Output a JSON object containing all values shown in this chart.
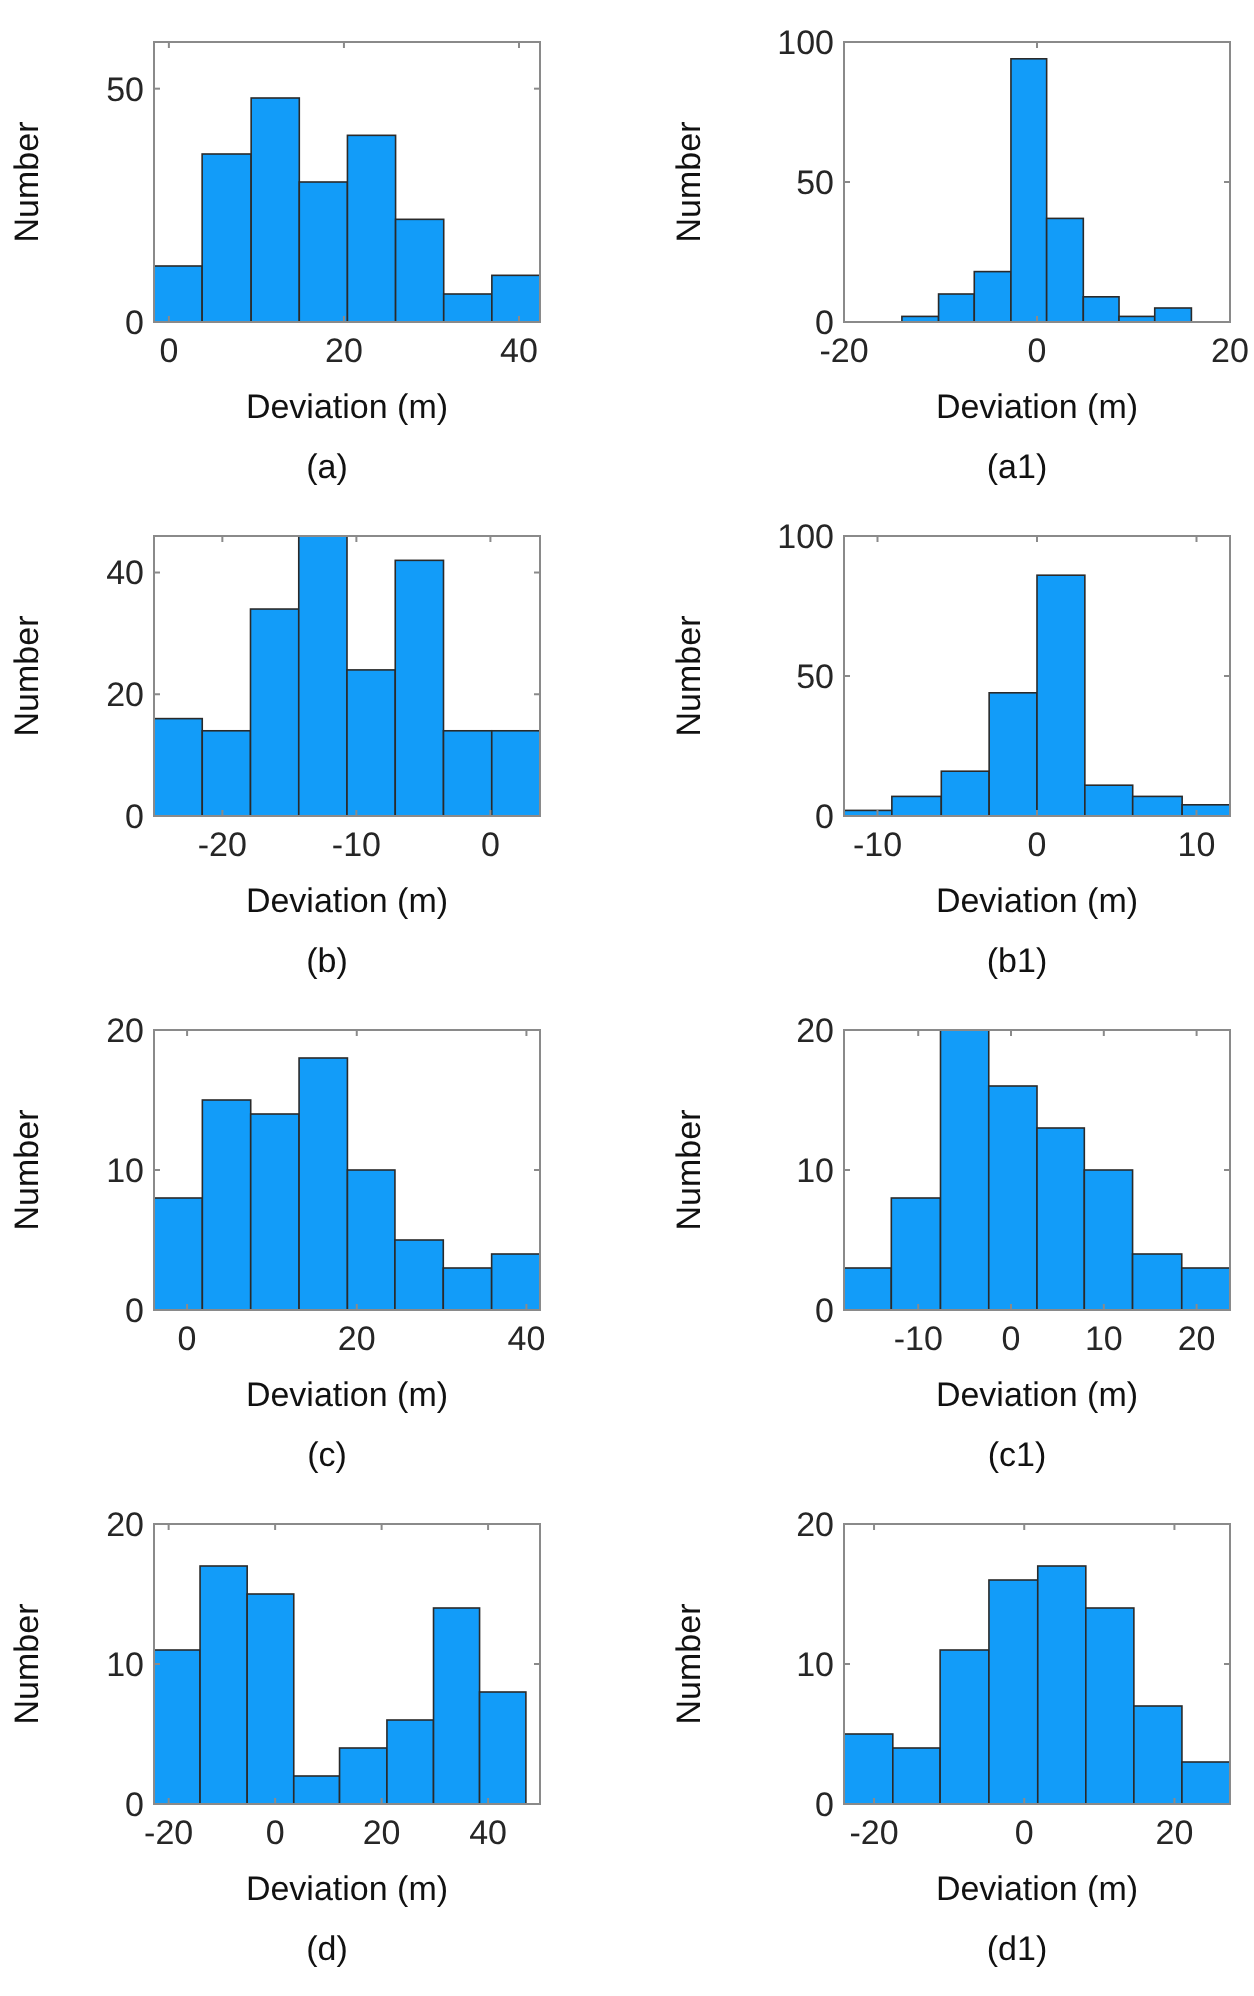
{
  "chart_data": [
    {
      "type": "histogram",
      "xlabel": "Deviation (m)",
      "ylabel": "Number",
      "annotations": [
        "(a)"
      ],
      "color": "#129cf9",
      "bins": [
        -1.7,
        3.8,
        9.4,
        14.9,
        20.4,
        25.9,
        31.4,
        36.9,
        42.4
      ],
      "values": [
        12,
        36,
        48,
        30,
        40,
        22,
        6,
        10
      ],
      "xlim": [
        -1.7,
        42.4
      ],
      "xticks": [
        0,
        20,
        40
      ],
      "ylim": [
        0,
        60
      ],
      "yticks": [
        0,
        50
      ],
      "grid": false
    },
    {
      "type": "histogram",
      "xlabel": "Deviation (m)",
      "ylabel": "Number",
      "annotations": [
        "(a1)"
      ],
      "color": "#129cf9",
      "bins": [
        -14,
        -10.2,
        -6.5,
        -2.7,
        1,
        4.8,
        8.5,
        12.2,
        16
      ],
      "values": [
        2,
        10,
        18,
        94,
        37,
        9,
        2,
        5
      ],
      "xlim": [
        -20,
        20
      ],
      "xticks": [
        -20,
        0,
        20
      ],
      "ylim": [
        0,
        100
      ],
      "yticks": [
        0,
        50,
        100
      ],
      "grid": false
    },
    {
      "type": "histogram",
      "xlabel": "Deviation (m)",
      "ylabel": "Number",
      "annotations": [
        "(b)"
      ],
      "color": "#129cf9",
      "bins": [
        -25.1,
        -21.5,
        -17.9,
        -14.3,
        -10.7,
        -7.1,
        -3.5,
        0.1,
        3.7
      ],
      "values": [
        16,
        14,
        34,
        46,
        24,
        42,
        14,
        14
      ],
      "xlim": [
        -25.1,
        3.7
      ],
      "xticks": [
        -20,
        -10,
        0
      ],
      "ylim": [
        0,
        46
      ],
      "yticks": [
        0,
        20,
        40
      ],
      "grid": false
    },
    {
      "type": "histogram",
      "xlabel": "Deviation (m)",
      "ylabel": "Number",
      "annotations": [
        "(b1)"
      ],
      "color": "#129cf9",
      "bins": [
        -12.1,
        -9.1,
        -6,
        -3,
        0,
        3,
        6,
        9.1,
        12.1
      ],
      "values": [
        2,
        7,
        16,
        44,
        86,
        11,
        7,
        4
      ],
      "xlim": [
        -12.1,
        12.1
      ],
      "xticks": [
        -10,
        0,
        10
      ],
      "ylim": [
        0,
        100
      ],
      "yticks": [
        0,
        50,
        100
      ],
      "grid": false
    },
    {
      "type": "histogram",
      "xlabel": "Deviation (m)",
      "ylabel": "Number",
      "annotations": [
        "(c)"
      ],
      "color": "#129cf9",
      "bins": [
        -3.9,
        1.8,
        7.5,
        13.2,
        18.9,
        24.5,
        30.2,
        35.9,
        41.6
      ],
      "values": [
        8,
        15,
        14,
        18,
        10,
        5,
        3,
        4
      ],
      "xlim": [
        -3.9,
        41.6
      ],
      "xticks": [
        0,
        20,
        40
      ],
      "ylim": [
        0,
        20
      ],
      "yticks": [
        0,
        10,
        20
      ],
      "grid": false
    },
    {
      "type": "histogram",
      "xlabel": "Deviation (m)",
      "ylabel": "Number",
      "annotations": [
        "(c1)"
      ],
      "color": "#129cf9",
      "bins": [
        -18,
        -12.9,
        -7.6,
        -2.4,
        2.8,
        7.9,
        13.1,
        18.4,
        23.6
      ],
      "values": [
        3,
        8,
        20,
        16,
        13,
        10,
        4,
        3
      ],
      "xlim": [
        -18,
        23.6
      ],
      "xticks": [
        -10,
        0,
        10,
        20
      ],
      "ylim": [
        0,
        20
      ],
      "yticks": [
        0,
        10,
        20
      ],
      "grid": false
    },
    {
      "type": "histogram",
      "xlabel": "Deviation (m)",
      "ylabel": "Number",
      "annotations": [
        "(d)"
      ],
      "color": "#129cf9",
      "bins": [
        -22.75,
        -14.1,
        -5.25,
        3.5,
        12.1,
        21,
        29.75,
        38.4,
        47.1
      ],
      "values": [
        11,
        17,
        15,
        2,
        4,
        6,
        14,
        8
      ],
      "xlim": [
        -22.75,
        49.75
      ],
      "xticks": [
        -20,
        0,
        20,
        40
      ],
      "ylim": [
        0,
        20
      ],
      "yticks": [
        0,
        10,
        20
      ],
      "grid": false
    },
    {
      "type": "histogram",
      "xlabel": "Deviation (m)",
      "ylabel": "Number",
      "annotations": [
        "(d1)"
      ],
      "color": "#129cf9",
      "bins": [
        -24,
        -17.5,
        -11.2,
        -4.7,
        1.8,
        8.2,
        14.6,
        21,
        27.4
      ],
      "values": [
        5,
        4,
        11,
        16,
        17,
        14,
        7,
        3
      ],
      "xlim": [
        -24,
        27.4
      ],
      "xticks": [
        -20,
        0,
        20
      ],
      "ylim": [
        0,
        20
      ],
      "yticks": [
        0,
        10,
        20
      ],
      "grid": false
    }
  ]
}
